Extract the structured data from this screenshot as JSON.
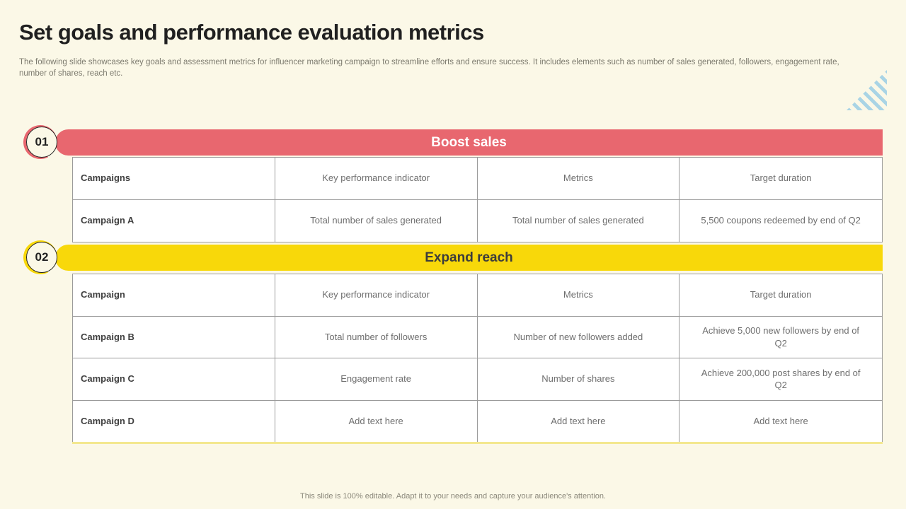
{
  "slide": {
    "title": "Set goals and performance evaluation metrics",
    "subtitle": "The following slide showcases key goals and assessment metrics for influencer marketing campaign to streamline efforts and ensure success. It includes elements such as number of sales generated, followers, engagement rate, number of shares, reach etc.",
    "footer": "This slide is 100% editable.  Adapt it to your needs and capture your audience's attention."
  },
  "colors": {
    "background": "#FBF8E7",
    "accent_red": "#E8676F",
    "accent_yellow": "#F8D80A",
    "stripe_blue": "#A9D4E5",
    "table_border": "#9B9B9B",
    "cell_text": "#6E6E6E",
    "lead_text": "#3F3F3F"
  },
  "icons": {
    "stripes_triangle": "diagonal-stripes-triangle-decoration"
  },
  "sections": [
    {
      "number": "01",
      "title": "Boost sales",
      "table": {
        "headers": [
          "Campaigns",
          "Key performance indicator",
          "Metrics",
          "Target duration"
        ],
        "rows": [
          [
            "Campaign A",
            "Total number of sales generated",
            "Total number of sales generated",
            "5,500 coupons redeemed by end of Q2"
          ]
        ]
      }
    },
    {
      "number": "02",
      "title": "Expand reach",
      "table": {
        "headers": [
          "Campaign",
          "Key performance indicator",
          "Metrics",
          "Target duration"
        ],
        "rows": [
          [
            "Campaign B",
            "Total number of followers",
            "Number of new followers added",
            "Achieve 5,000 new followers by end of Q2"
          ],
          [
            "Campaign C",
            "Engagement rate",
            "Number of shares",
            "Achieve 200,000 post shares by end of Q2"
          ],
          [
            "Campaign D",
            "Add text here",
            "Add text here",
            "Add text here"
          ]
        ]
      }
    }
  ]
}
